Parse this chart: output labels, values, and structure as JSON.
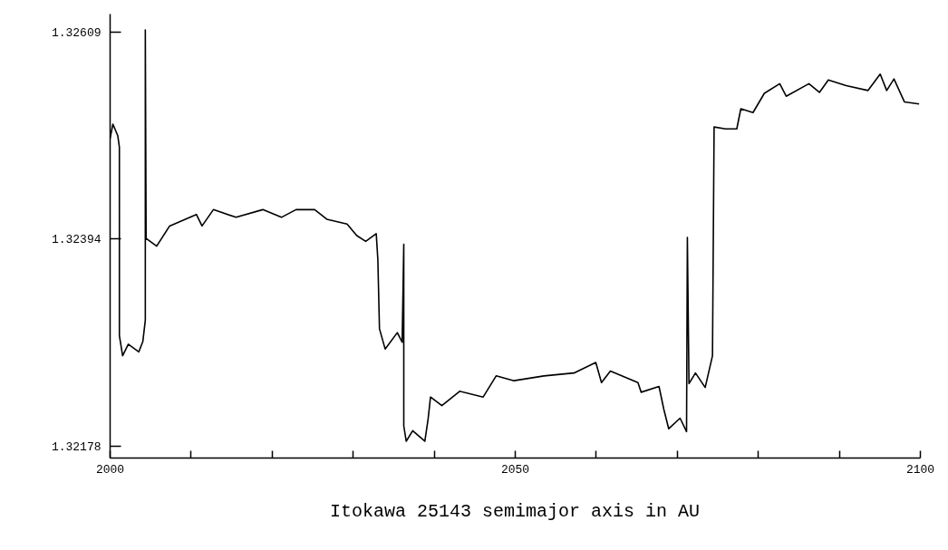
{
  "chart_data": {
    "type": "line",
    "title": "Itokawa   25143     semimajor axis in AU",
    "x": [
      2000,
      2000.4,
      2001.0,
      2001.2,
      2001.2,
      2001.6,
      2002.3,
      2003.6,
      2004.1,
      2004.4,
      2004.4,
      2004.5,
      2005.8,
      2007.4,
      2010.7,
      2011.4,
      2012.8,
      2015.6,
      2018.9,
      2021.2,
      2023.0,
      2025.3,
      2026.8,
      2029.3,
      2030.5,
      2031.6,
      2032.9,
      2033.1,
      2033.3,
      2034.0,
      2035.5,
      2036.1,
      2036.3,
      2036.3,
      2036.6,
      2037.4,
      2038.9,
      2039.3,
      2039.6,
      2041.0,
      2043.2,
      2046.1,
      2047.7,
      2049.9,
      2053.6,
      2057.3,
      2060.0,
      2060.7,
      2061.8,
      2065.2,
      2065.6,
      2067.8,
      2068.4,
      2069.0,
      2070.4,
      2071.2,
      2071.3,
      2071.5,
      2072.3,
      2073.5,
      2074.4,
      2074.6,
      2076.0,
      2077.4,
      2077.9,
      2079.4,
      2080.8,
      2082.7,
      2083.5,
      2086.3,
      2087.6,
      2088.7,
      2090.9,
      2093.6,
      2095.1,
      2095.9,
      2096.8,
      2098.1,
      2099.9
    ],
    "series": [
      {
        "color": "#000000",
        "values": [
          1.32496,
          1.32513,
          1.32501,
          1.32489,
          1.32293,
          1.32272,
          1.32284,
          1.32276,
          1.32287,
          1.32309,
          1.32611,
          1.32394,
          1.32386,
          1.32407,
          1.32419,
          1.32407,
          1.32424,
          1.32416,
          1.32424,
          1.32416,
          1.32424,
          1.32424,
          1.32414,
          1.32409,
          1.32397,
          1.32391,
          1.32399,
          1.32372,
          1.323,
          1.32279,
          1.32296,
          1.32286,
          1.32388,
          1.32199,
          1.32183,
          1.32194,
          1.32183,
          1.32206,
          1.32229,
          1.3222,
          1.32235,
          1.32229,
          1.32251,
          1.32246,
          1.32251,
          1.32254,
          1.32265,
          1.32244,
          1.32256,
          1.32244,
          1.32234,
          1.3224,
          1.32216,
          1.32196,
          1.32207,
          1.32193,
          1.32395,
          1.32243,
          1.32254,
          1.32239,
          1.32272,
          1.3251,
          1.32508,
          1.32508,
          1.32529,
          1.32525,
          1.32545,
          1.32555,
          1.32542,
          1.32555,
          1.32546,
          1.32559,
          1.32553,
          1.32548,
          1.32565,
          1.32548,
          1.3256,
          1.32536,
          1.32534
        ]
      }
    ],
    "xlim": [
      2000,
      2100
    ],
    "xticks": [
      2000,
      {
        "value": 2010,
        "label": null
      },
      {
        "value": 2020,
        "label": null
      },
      {
        "value": 2030,
        "label": null
      },
      {
        "value": 2040,
        "label": null
      },
      2050,
      {
        "value": 2060,
        "label": null
      },
      {
        "value": 2070,
        "label": null
      },
      {
        "value": 2080,
        "label": null
      },
      {
        "value": 2090,
        "label": null
      },
      2100
    ],
    "ylim": [
      1.32166,
      1.32628
    ],
    "yticks": [
      1.32178,
      1.32394,
      1.32609
    ],
    "grid": false
  }
}
